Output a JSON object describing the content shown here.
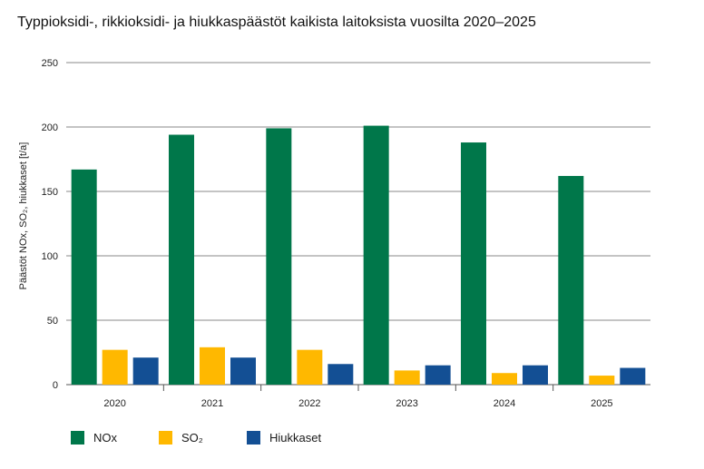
{
  "chart_data": {
    "type": "bar",
    "title": "Typpioksidi-, rikkioksidi- ja hiukkaspäästöt kaikista laitoksista vuosilta 2020–2025",
    "ylabel": "Päästöt NOx, SO₂, hiukkaset [t/a]",
    "xlabel": "",
    "categories": [
      "2020",
      "2021",
      "2022",
      "2023",
      "2024",
      "2025"
    ],
    "ylim": [
      0,
      250
    ],
    "yticks": [
      "0",
      "50",
      "100",
      "150",
      "200",
      "250"
    ],
    "grid": true,
    "legend_position": "bottom-left",
    "series": [
      {
        "name": "NOx",
        "color": "#00774a",
        "values": [
          167,
          194,
          199,
          201,
          188,
          162
        ]
      },
      {
        "name": "SO₂",
        "color": "#ffb800",
        "values": [
          27,
          29,
          27,
          11,
          9,
          7
        ]
      },
      {
        "name": "Hiukkaset",
        "color": "#134f94",
        "values": [
          21,
          21,
          16,
          15,
          15,
          13
        ]
      }
    ]
  }
}
